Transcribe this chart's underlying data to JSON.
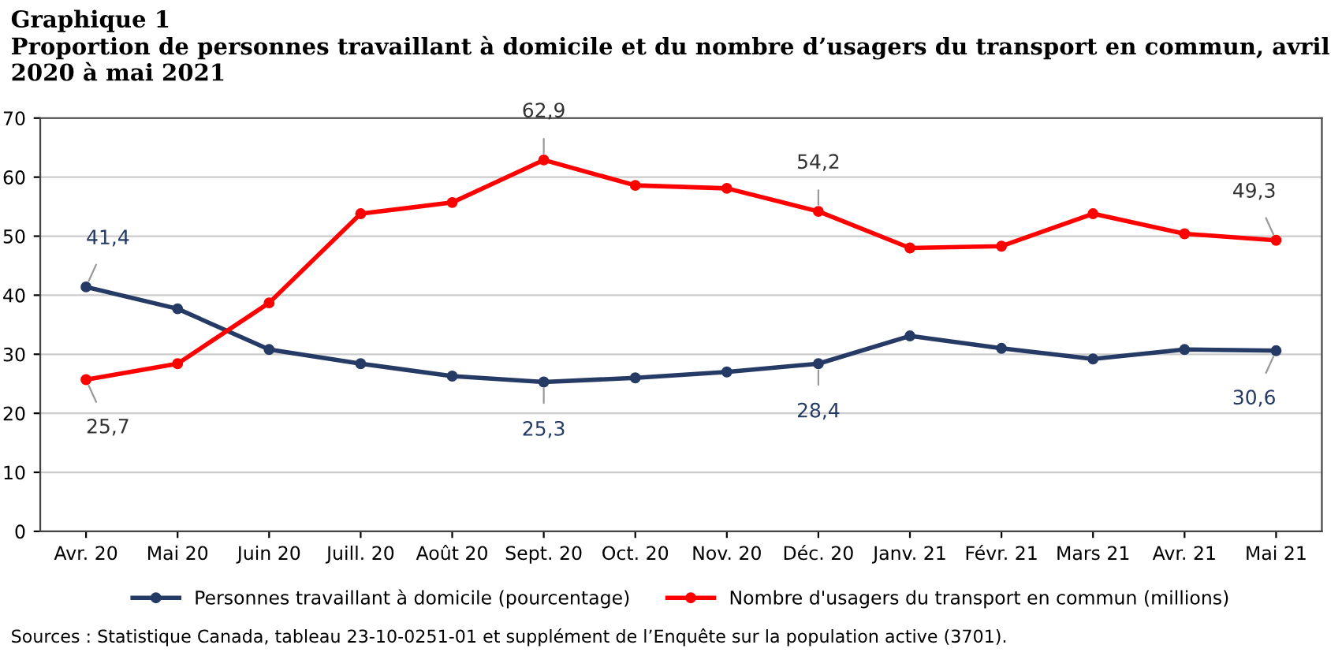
{
  "chart_data": {
    "type": "line",
    "title": "Graphique 1",
    "subtitle": "Proportion de personnes travaillant à domicile et du nombre d’usagers du transport en commun, avril 2020 à mai 2021",
    "categories": [
      "Avr. 20",
      "Mai 20",
      "Juin 20",
      "Juill. 20",
      "Août 20",
      "Sept. 20",
      "Oct. 20",
      "Nov. 20",
      "Déc. 20",
      "Janv. 21",
      "Févr. 21",
      "Mars 21",
      "Avr. 21",
      "Mai 21"
    ],
    "series": [
      {
        "name": "Personnes travaillant à domicile (pourcentage)",
        "color": "#253a64",
        "values": [
          41.4,
          37.7,
          30.8,
          28.4,
          26.3,
          25.3,
          26.0,
          27.0,
          28.4,
          33.1,
          31.0,
          29.2,
          30.8,
          30.6
        ],
        "value_labels": [
          "41,4",
          null,
          null,
          null,
          null,
          "25,3",
          null,
          null,
          "28,4",
          null,
          null,
          null,
          null,
          "30,6"
        ]
      },
      {
        "name": "Nombre d'usagers du transport en commun (millions)",
        "color": "#ff0000",
        "values": [
          25.7,
          28.4,
          38.7,
          53.8,
          55.7,
          62.9,
          58.6,
          58.1,
          54.2,
          48.0,
          48.3,
          53.8,
          50.4,
          49.3
        ],
        "value_labels": [
          "25,7",
          null,
          null,
          null,
          null,
          "62,9",
          null,
          null,
          "54,2",
          null,
          null,
          null,
          null,
          "49,3"
        ]
      }
    ],
    "ylim": [
      0,
      70
    ],
    "yticks": [
      0,
      10,
      20,
      30,
      40,
      50,
      60,
      70
    ],
    "grid": "y",
    "legend": "bottom",
    "marker": "circle",
    "line_style": "solid",
    "annotations": [
      "Sources : Statistique Canada, tableau 23-10-0251-01 et supplément de l’Enquête sur la population active (3701)."
    ]
  }
}
